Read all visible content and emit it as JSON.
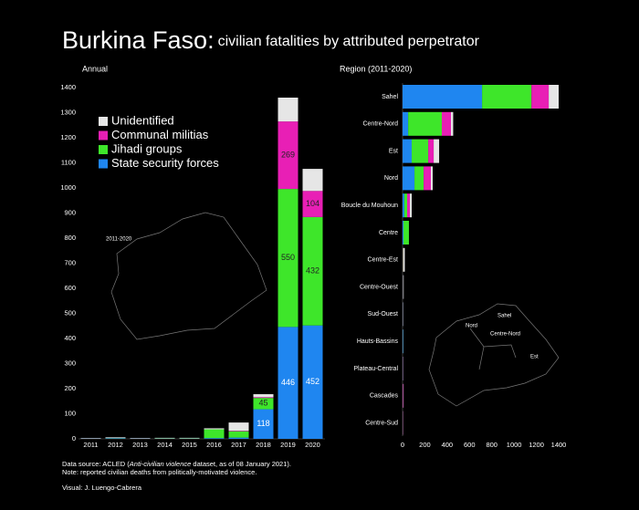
{
  "title": "Burkina Faso:",
  "subtitle": "civilian fatalities by attributed perpetrator",
  "notes": {
    "source_prefix": "Data source: ACLED (",
    "source_italic": "Anti-civilian violence",
    "source_suffix": " dataset, as of 08 January 2021).",
    "note": "Note: reported civilian deaths from politically-motivated violence.",
    "credit": "Visual: J. Luengo-Cabrera"
  },
  "chart_data": [
    {
      "type": "stacked-bar",
      "title": "Annual",
      "map_label": "2011-2020",
      "categories": [
        "2011",
        "2012",
        "2013",
        "2014",
        "2015",
        "2016",
        "2017",
        "2018",
        "2019",
        "2020"
      ],
      "series": [
        {
          "name": "State security forces",
          "color": "#1f86f0",
          "values": [
            1,
            2,
            1,
            1,
            1,
            3,
            5,
            118,
            446,
            452
          ]
        },
        {
          "name": "Jihadi groups",
          "color": "#3ee62a",
          "values": [
            0,
            1,
            0,
            1,
            1,
            35,
            25,
            45,
            550,
            432
          ]
        },
        {
          "name": "Communal militias",
          "color": "#e81fb5",
          "values": [
            0,
            0,
            0,
            0,
            0,
            0,
            2,
            3,
            269,
            104
          ]
        },
        {
          "name": "Unidentified",
          "color": "#e6e6e6",
          "values": [
            2,
            3,
            2,
            2,
            2,
            4,
            33,
            12,
            95,
            88
          ]
        }
      ],
      "ylim": [
        0,
        1400
      ],
      "yticks": [
        0,
        100,
        200,
        300,
        400,
        500,
        600,
        700,
        800,
        900,
        1000,
        1100,
        1200,
        1300,
        1400
      ],
      "legend": "upper left"
    },
    {
      "type": "stacked-barh",
      "title": "Region (2011-2020)",
      "map_labels": [
        "Sahel",
        "Nord",
        "Centre-Nord",
        "Est"
      ],
      "categories": [
        "Sahel",
        "Centre-Nord",
        "Est",
        "Nord",
        "Boucle du Mouhoun",
        "Centre",
        "Centre-Est",
        "Centre-Ouest",
        "Sud-Ouest",
        "Hauts-Bassins",
        "Plateau-Central",
        "Cascades",
        "Centre-Sud"
      ],
      "series": [
        {
          "color": "#1f86f0",
          "values": [
            713,
            50,
            82,
            107,
            16,
            8,
            0,
            2,
            2,
            4,
            2,
            1,
            1
          ]
        },
        {
          "color": "#3ee62a",
          "values": [
            443,
            302,
            148,
            82,
            25,
            49,
            3,
            2,
            1,
            2,
            1,
            1,
            1
          ]
        },
        {
          "color": "#e81fb5",
          "values": [
            155,
            82,
            49,
            65,
            25,
            0,
            3,
            3,
            1,
            1,
            2,
            5,
            2
          ]
        },
        {
          "color": "#e6e6e6",
          "values": [
            89,
            20,
            49,
            16,
            16,
            0,
            14,
            3,
            2,
            1,
            1,
            2,
            1
          ]
        }
      ],
      "xlim": [
        0,
        1400
      ],
      "xticks": [
        0,
        200,
        400,
        600,
        800,
        1000,
        1200,
        1400
      ]
    }
  ]
}
